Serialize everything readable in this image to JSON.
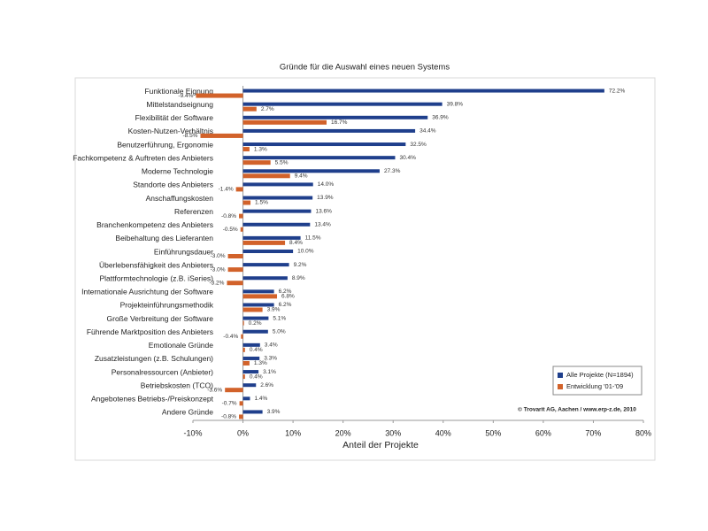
{
  "chart_data": {
    "type": "hbar",
    "title": "Gründe für die Auswahl eines neuen Systems",
    "x_label": "Anteil der Projekte",
    "source": "© Trovarit AG, Aachen / www.erp-z.de, 2010",
    "categories": [
      "Funktionale Eignung",
      "Mittelstandseignung",
      "Flexibilität der Software",
      "Kosten-Nutzen-Verhältnis",
      "Benutzerführung, Ergonomie",
      "Fachkompetenz & Auftreten des Anbieters",
      "Moderne Technologie",
      "Standorte des Anbieters",
      "Anschaffungskosten",
      "Referenzen",
      "Branchenkompetenz des Anbieters",
      "Beibehaltung des Lieferanten",
      "Einführungsdauer",
      "Überlebensfähigkeit des Anbieters",
      "Plattformtechnologie (z.B. iSeries)",
      "Internationale Ausrichtung der Software",
      "Projekteinführungsmethodik",
      "Große Verbreitung der Software",
      "Führende Marktposition des Anbieters",
      "Emotionale Gründe",
      "Zusatzleistungen (z.B. Schulungen)",
      "Personalressourcen (Anbieter)",
      "Betriebskosten (TCO)",
      "Angebotenes Betriebs-/Preiskonzept",
      "Andere Gründe"
    ],
    "series": [
      {
        "name": "Alle Projekte (N=1894)",
        "color": "#1f3f8c",
        "values": [
          72.2,
          39.8,
          36.9,
          34.4,
          32.5,
          30.4,
          27.3,
          14.0,
          13.9,
          13.6,
          13.4,
          11.5,
          10.0,
          9.2,
          8.9,
          6.2,
          6.2,
          5.1,
          5.0,
          3.4,
          3.3,
          3.1,
          2.6,
          1.4,
          3.9
        ],
        "value_labels": [
          "72.2%",
          "39.8%",
          "36.9%",
          "34.4%",
          "32.5%",
          "30.4%",
          "27.3%",
          "14.0%",
          "13.9%",
          "13.6%",
          "13.4%",
          "11.5%",
          "10.0%",
          "9.2%",
          "8.9%",
          "6.2%",
          "6.2%",
          "5.1%",
          "5.0%",
          "3.4%",
          "3.3%",
          "3.1%",
          "2.6%",
          "1.4%",
          "3.9%"
        ]
      },
      {
        "name": "Entwicklung '01-'09",
        "color": "#d2622a",
        "values": [
          -9.4,
          2.7,
          16.7,
          -8.5,
          1.3,
          5.5,
          9.4,
          -1.4,
          1.5,
          -0.8,
          -0.5,
          8.4,
          -3.0,
          -3.0,
          -3.2,
          6.8,
          3.9,
          0.2,
          -0.4,
          0.4,
          1.3,
          0.4,
          -3.6,
          -0.7,
          -0.8
        ],
        "value_labels": [
          "-9.4%",
          "2.7%",
          "16.7%",
          "-8.5%",
          "1.3%",
          "5.5%",
          "9.4%",
          "-1.4%",
          "1.5%",
          "-0.8%",
          "-0.5%",
          "8.4%",
          "-3.0%",
          "-3.0%",
          "-3.2%",
          "6.8%",
          "3.9%",
          "0.2%",
          "-0.4%",
          "0.4%",
          "1.3%",
          "0.4%",
          "-3.6%",
          "-0.7%",
          "-0.8%"
        ]
      }
    ],
    "xlim": [
      -10,
      80
    ],
    "xticks": [
      {
        "value": -10,
        "label": "-10%"
      },
      {
        "value": 0,
        "label": "0%"
      },
      {
        "value": 10,
        "label": "10%"
      },
      {
        "value": 20,
        "label": "20%"
      },
      {
        "value": 30,
        "label": "30%"
      },
      {
        "value": 40,
        "label": "40%"
      },
      {
        "value": 50,
        "label": "50%"
      },
      {
        "value": 60,
        "label": "60%"
      },
      {
        "value": 70,
        "label": "70%"
      },
      {
        "value": 80,
        "label": "80%"
      }
    ],
    "grid": false,
    "legend": "lower right"
  }
}
